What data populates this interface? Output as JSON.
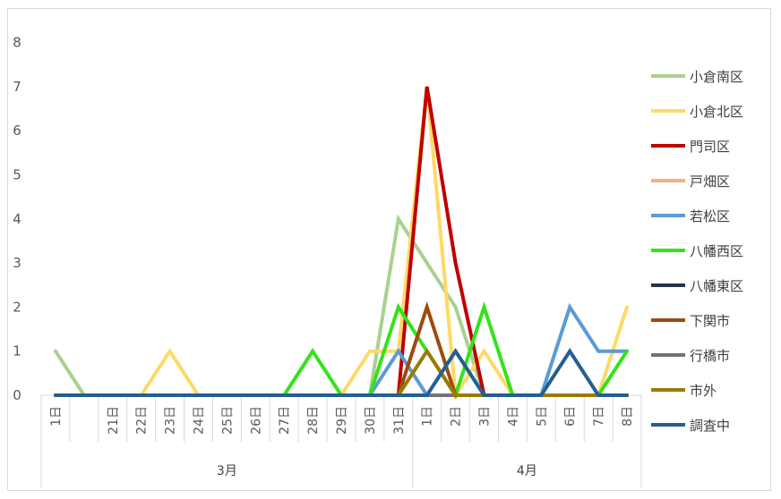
{
  "chart_data": {
    "type": "line",
    "title": "",
    "xlabel": "",
    "ylabel": "",
    "ylim": [
      0,
      8
    ],
    "yticks": [
      0,
      1,
      2,
      3,
      4,
      5,
      6,
      7,
      8
    ],
    "grid": false,
    "legend_position": "right",
    "categories": [
      "1日",
      "",
      "21日",
      "22日",
      "23日",
      "24日",
      "25日",
      "26日",
      "27日",
      "28日",
      "29日",
      "30日",
      "31日",
      "1日",
      "2日",
      "3日",
      "4日",
      "5日",
      "6日",
      "7日",
      "8日"
    ],
    "groups": [
      {
        "label": "3月",
        "start": 0,
        "end": 12
      },
      {
        "label": "4月",
        "start": 13,
        "end": 20
      }
    ],
    "series": [
      {
        "name": "小倉南区",
        "color": "#a9d18e",
        "values": [
          1,
          0,
          0,
          0,
          0,
          0,
          0,
          0,
          0,
          0,
          0,
          0,
          4,
          3,
          2,
          0,
          0,
          0,
          0,
          0,
          0
        ]
      },
      {
        "name": "小倉北区",
        "color": "#ffd966",
        "values": [
          0,
          0,
          0,
          0,
          1,
          0,
          0,
          0,
          0,
          0,
          0,
          1,
          1,
          7,
          0,
          1,
          0,
          0,
          0,
          0,
          2
        ]
      },
      {
        "name": "門司区",
        "color": "#c00000",
        "values": [
          0,
          0,
          0,
          0,
          0,
          0,
          0,
          0,
          0,
          0,
          0,
          0,
          0,
          7,
          3,
          0,
          0,
          0,
          0,
          0,
          0
        ]
      },
      {
        "name": "戸畑区",
        "color": "#f4b183",
        "values": [
          0,
          0,
          0,
          0,
          0,
          0,
          0,
          0,
          0,
          0,
          0,
          0,
          0,
          0,
          0,
          0,
          0,
          0,
          0,
          0,
          0
        ]
      },
      {
        "name": "若松区",
        "color": "#5b9bd5",
        "values": [
          0,
          0,
          0,
          0,
          0,
          0,
          0,
          0,
          0,
          0,
          0,
          0,
          1,
          0,
          0,
          0,
          0,
          0,
          2,
          1,
          1
        ]
      },
      {
        "name": "八幡西区",
        "color": "#33e31a",
        "values": [
          0,
          0,
          0,
          0,
          0,
          0,
          0,
          0,
          0,
          1,
          0,
          0,
          2,
          1,
          0,
          2,
          0,
          0,
          0,
          0,
          1
        ]
      },
      {
        "name": "八幡東区",
        "color": "#243449",
        "values": [
          0,
          0,
          0,
          0,
          0,
          0,
          0,
          0,
          0,
          0,
          0,
          0,
          0,
          0,
          0,
          0,
          0,
          0,
          0,
          0,
          0
        ]
      },
      {
        "name": "下関市",
        "color": "#9c4a10",
        "values": [
          0,
          0,
          0,
          0,
          0,
          0,
          0,
          0,
          0,
          0,
          0,
          0,
          0,
          2,
          0,
          0,
          0,
          0,
          0,
          0,
          0
        ]
      },
      {
        "name": "行橋市",
        "color": "#737373",
        "values": [
          0,
          0,
          0,
          0,
          0,
          0,
          0,
          0,
          0,
          0,
          0,
          0,
          0,
          0,
          0,
          0,
          0,
          0,
          0,
          0,
          0
        ]
      },
      {
        "name": "市外",
        "color": "#9c7a00",
        "values": [
          0,
          0,
          0,
          0,
          0,
          0,
          0,
          0,
          0,
          0,
          0,
          0,
          0,
          1,
          0,
          0,
          0,
          0,
          0,
          0,
          0
        ]
      },
      {
        "name": "調査中",
        "color": "#255e91",
        "values": [
          0,
          0,
          0,
          0,
          0,
          0,
          0,
          0,
          0,
          0,
          0,
          0,
          0,
          0,
          1,
          0,
          0,
          0,
          1,
          0,
          0
        ]
      }
    ]
  }
}
